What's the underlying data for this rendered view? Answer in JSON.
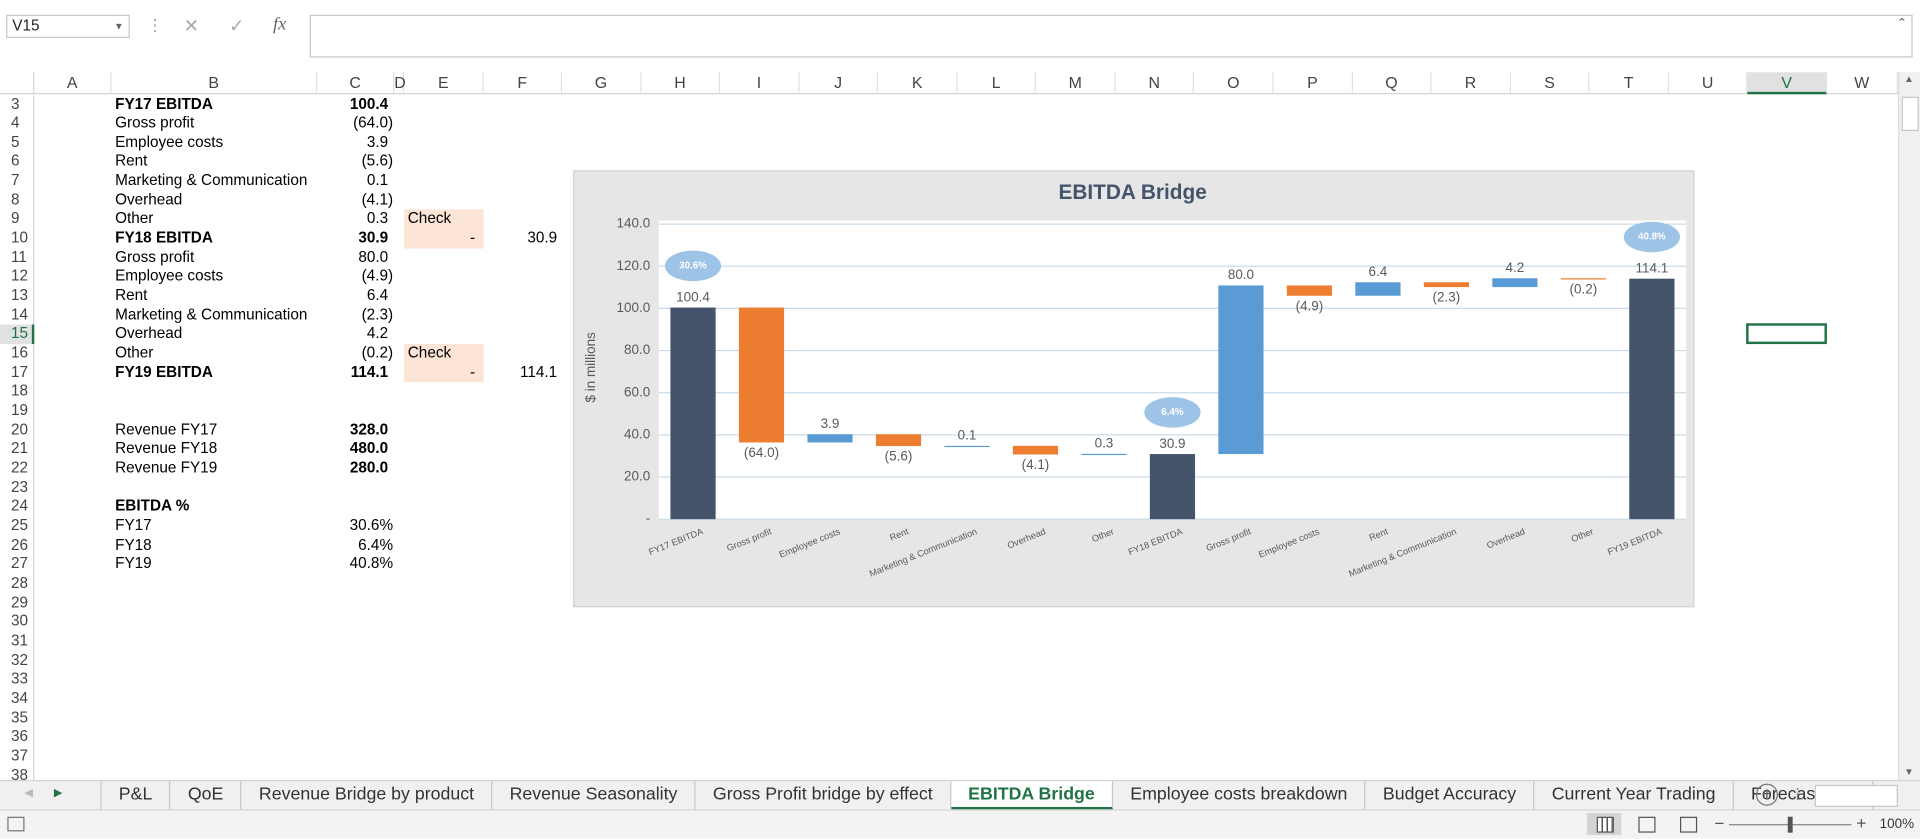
{
  "name_box": "V15",
  "formula_label": "fx",
  "columns": [
    "A",
    "B",
    "C",
    "D",
    "E",
    "F",
    "G",
    "H",
    "I",
    "J",
    "K",
    "L",
    "M",
    "N",
    "O",
    "P",
    "Q",
    "R",
    "S",
    "T",
    "U",
    "V",
    "W"
  ],
  "active_column": "V",
  "active_row": "15",
  "rows": [
    {
      "row": "3",
      "cells": {
        "B": "FY17 EBITDA",
        "C": "100.4"
      },
      "bold": [
        "B",
        "C"
      ]
    },
    {
      "row": "4",
      "cells": {
        "B": "Gross profit",
        "C": "(64.0)"
      }
    },
    {
      "row": "5",
      "cells": {
        "B": "Employee costs",
        "C": "3.9"
      }
    },
    {
      "row": "6",
      "cells": {
        "B": "Rent",
        "C": "(5.6)"
      }
    },
    {
      "row": "7",
      "cells": {
        "B": "Marketing & Communication",
        "C": "0.1"
      }
    },
    {
      "row": "8",
      "cells": {
        "B": "Overhead",
        "C": "(4.1)"
      }
    },
    {
      "row": "9",
      "cells": {
        "B": "Other",
        "C": "0.3",
        "E": "Check"
      },
      "fill": [
        "E"
      ]
    },
    {
      "row": "10",
      "cells": {
        "B": "FY18 EBITDA",
        "C": "30.9",
        "E": "-",
        "F": "30.9"
      },
      "bold": [
        "B",
        "C"
      ],
      "fill": [
        "E"
      ]
    },
    {
      "row": "11",
      "cells": {
        "B": "Gross profit",
        "C": "80.0"
      }
    },
    {
      "row": "12",
      "cells": {
        "B": "Employee costs",
        "C": "(4.9)"
      }
    },
    {
      "row": "13",
      "cells": {
        "B": "Rent",
        "C": "6.4"
      }
    },
    {
      "row": "14",
      "cells": {
        "B": "Marketing & Communication",
        "C": "(2.3)"
      }
    },
    {
      "row": "15",
      "cells": {
        "B": "Overhead",
        "C": "4.2"
      }
    },
    {
      "row": "16",
      "cells": {
        "B": "Other",
        "C": "(0.2)",
        "E": "Check"
      },
      "fill": [
        "E"
      ]
    },
    {
      "row": "17",
      "cells": {
        "B": "FY19 EBITDA",
        "C": "114.1",
        "E": "-",
        "F": "114.1"
      },
      "bold": [
        "B",
        "C"
      ],
      "fill": [
        "E"
      ]
    },
    {
      "row": "18",
      "cells": {}
    },
    {
      "row": "19",
      "cells": {}
    },
    {
      "row": "20",
      "cells": {
        "B": "Revenue FY17",
        "C": "328.0"
      },
      "bold": [
        "C"
      ]
    },
    {
      "row": "21",
      "cells": {
        "B": "Revenue FY18",
        "C": "480.0"
      },
      "bold": [
        "C"
      ]
    },
    {
      "row": "22",
      "cells": {
        "B": "Revenue FY19",
        "C": "280.0"
      },
      "bold": [
        "C"
      ]
    },
    {
      "row": "23",
      "cells": {}
    },
    {
      "row": "24",
      "cells": {
        "B": "EBITDA %"
      },
      "bold": [
        "B"
      ]
    },
    {
      "row": "25",
      "cells": {
        "B": "FY17",
        "C": "30.6%"
      }
    },
    {
      "row": "26",
      "cells": {
        "B": "FY18",
        "C": "6.4%"
      }
    },
    {
      "row": "27",
      "cells": {
        "B": "FY19",
        "C": "40.8%"
      }
    },
    {
      "row": "28",
      "cells": {}
    },
    {
      "row": "29",
      "cells": {}
    },
    {
      "row": "30",
      "cells": {}
    },
    {
      "row": "31",
      "cells": {}
    },
    {
      "row": "32",
      "cells": {}
    },
    {
      "row": "33",
      "cells": {}
    },
    {
      "row": "34",
      "cells": {}
    },
    {
      "row": "35",
      "cells": {}
    },
    {
      "row": "36",
      "cells": {}
    },
    {
      "row": "37",
      "cells": {}
    },
    {
      "row": "38",
      "cells": {}
    }
  ],
  "sheet_tabs": [
    "P&L",
    "QoE",
    "Revenue Bridge by product",
    "Revenue Seasonality",
    "Gross Profit bridge by effect",
    "EBITDA Bridge",
    "Employee costs breakdown",
    "Budget Accuracy",
    "Current Year Trading",
    "Forecast a ..."
  ],
  "active_tab": "EBITDA Bridge",
  "zoom": "100%",
  "chart_data": {
    "type": "waterfall",
    "title": "EBITDA Bridge",
    "y_label": "$ in millions",
    "categories": [
      "FY17 EBITDA",
      "Gross profit",
      "Employee costs",
      "Rent",
      "Marketing & Communication",
      "Overhead",
      "Other",
      "FY18 EBITDA",
      "Gross profit",
      "Employee costs",
      "Rent",
      "Marketing & Communication",
      "Overhead",
      "Other",
      "FY19 EBITDA"
    ],
    "values": [
      100.4,
      -64.0,
      3.9,
      -5.6,
      0.1,
      -4.1,
      0.3,
      30.9,
      80.0,
      -4.9,
      6.4,
      -2.3,
      4.2,
      -0.2,
      114.1
    ],
    "value_labels": [
      "100.4",
      "(64.0)",
      "3.9",
      "(5.6)",
      "0.1",
      "(4.1)",
      "0.3",
      "30.9",
      "80.0",
      "(4.9)",
      "6.4",
      "(2.3)",
      "4.2",
      "(0.2)",
      "114.1"
    ],
    "measures": [
      "total",
      "relative",
      "relative",
      "relative",
      "relative",
      "relative",
      "relative",
      "total",
      "relative",
      "relative",
      "relative",
      "relative",
      "relative",
      "relative",
      "total"
    ],
    "colors": {
      "total": "#44546a",
      "increase": "#5b9bd5",
      "decrease": "#ed7d31"
    },
    "ylim": [
      0,
      140
    ],
    "yticks": [
      {
        "value": 0,
        "label": "-"
      },
      {
        "value": 20,
        "label": "20.0"
      },
      {
        "value": 40,
        "label": "40.0"
      },
      {
        "value": 60,
        "label": "60.0"
      },
      {
        "value": 80,
        "label": "80.0"
      },
      {
        "value": 100,
        "label": "100.0"
      },
      {
        "value": 120,
        "label": "120.0"
      },
      {
        "value": 140,
        "label": "140.0"
      }
    ],
    "grid": true,
    "annotations": [
      {
        "text": "30.6%",
        "category": "FY17 EBITDA"
      },
      {
        "text": "6.4%",
        "category": "FY18 EBITDA"
      },
      {
        "text": "40.8%",
        "category": "FY19 EBITDA"
      }
    ]
  }
}
